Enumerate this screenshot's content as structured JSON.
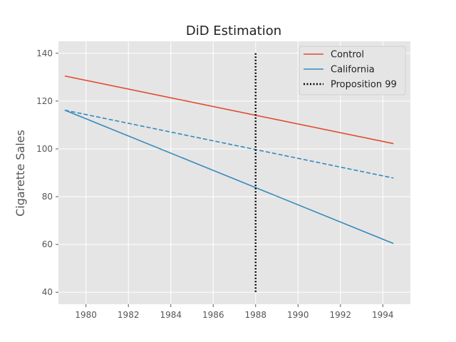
{
  "chart_data": {
    "type": "line",
    "title": "DiD Estimation",
    "xlabel": "",
    "ylabel": "Cigarette Sales",
    "xlim": [
      1978.7,
      1995.3
    ],
    "ylim": [
      35,
      145
    ],
    "xticks": [
      1980,
      1982,
      1984,
      1986,
      1988,
      1990,
      1992,
      1994
    ],
    "yticks": [
      40,
      60,
      80,
      100,
      120,
      140
    ],
    "grid": true,
    "legend_position": "top-right",
    "series": [
      {
        "name": "Control",
        "color": "#E24A33",
        "style": "solid",
        "x": [
          1979,
          1994.5
        ],
        "y": [
          130.5,
          102.2
        ]
      },
      {
        "name": "California",
        "color": "#348ABD",
        "style": "solid",
        "x": [
          1979,
          1994.5
        ],
        "y": [
          116.2,
          60.4
        ]
      },
      {
        "name": "",
        "color": "#348ABD",
        "style": "dashed",
        "x": [
          1979,
          1994.5
        ],
        "y": [
          116.2,
          87.8
        ]
      }
    ],
    "vlines": [
      {
        "name": "Proposition 99",
        "x": 1988,
        "ymin": 40,
        "ymax": 140,
        "color": "#000000",
        "style": "dotted"
      }
    ]
  }
}
